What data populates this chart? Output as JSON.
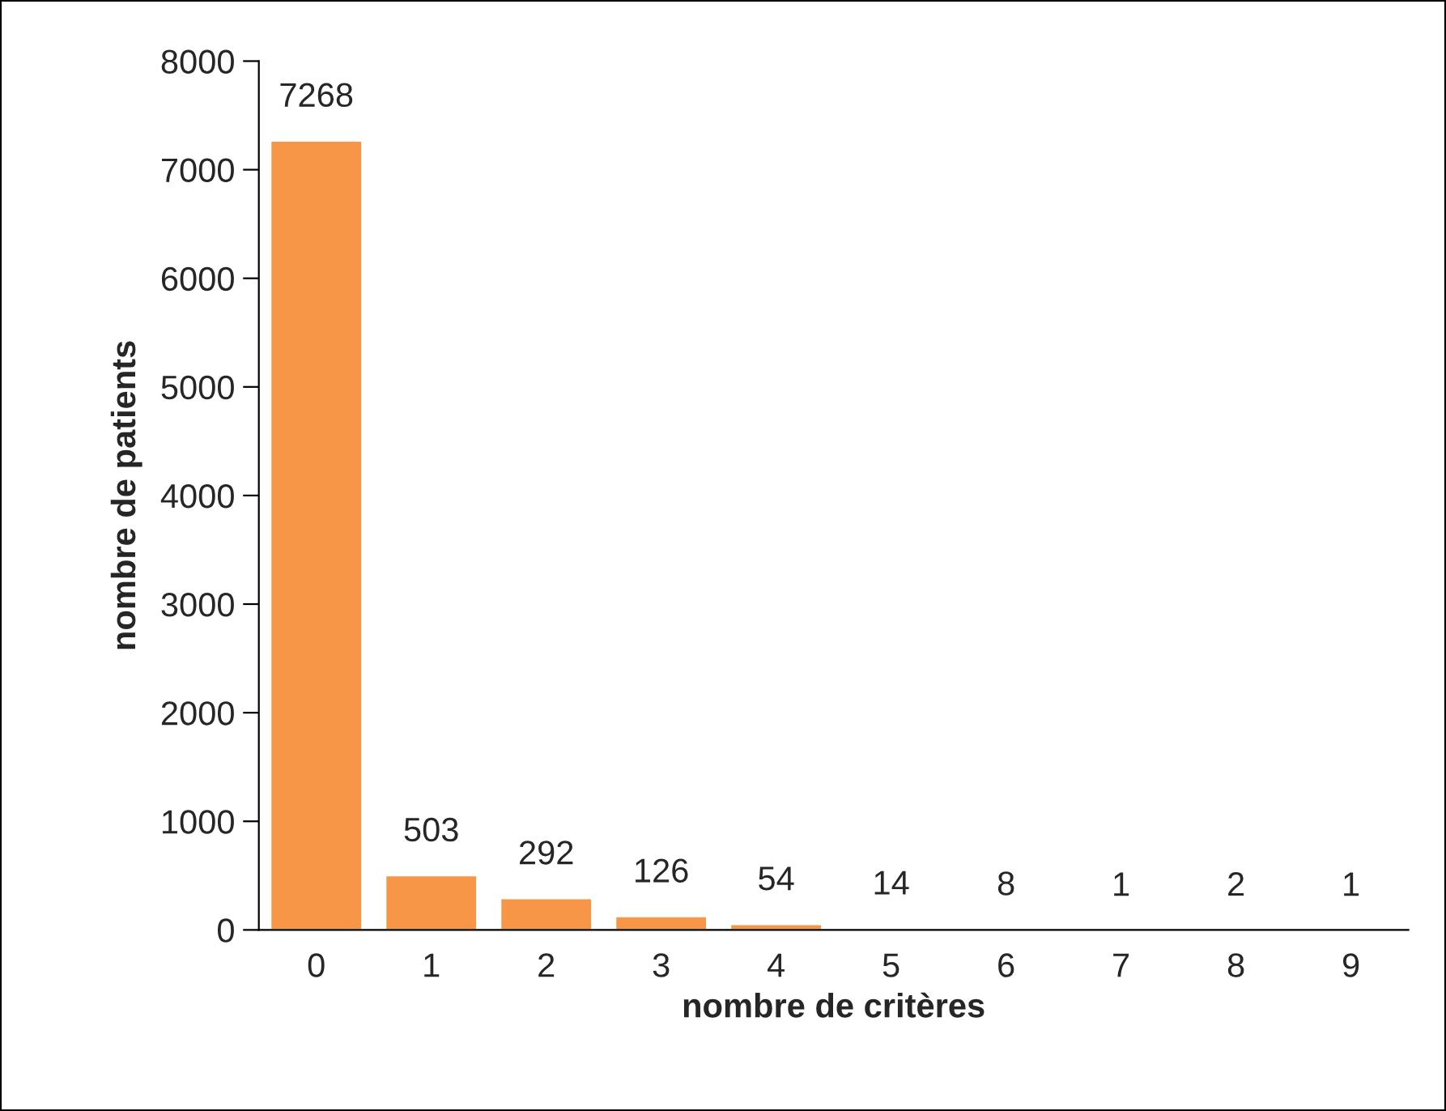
{
  "chart_data": {
    "type": "bar",
    "xlabel": "nombre de critères",
    "ylabel": "nombre de patients",
    "categories": [
      "0",
      "1",
      "2",
      "3",
      "4",
      "5",
      "6",
      "7",
      "8",
      "9"
    ],
    "values": [
      7268,
      503,
      292,
      126,
      54,
      14,
      8,
      1,
      2,
      1
    ],
    "color": "#f79646",
    "ylim": [
      0,
      8000
    ],
    "yticks": [
      0,
      1000,
      2000,
      3000,
      4000,
      5000,
      6000,
      7000,
      8000
    ],
    "grid": false,
    "data_labels": true
  }
}
